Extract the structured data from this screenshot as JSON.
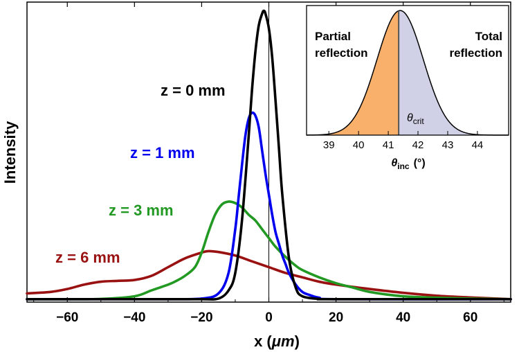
{
  "chart_data": [
    {
      "type": "line",
      "title": "",
      "xlabel": "x (μm)",
      "xlabel_parts": {
        "prefix": "x (",
        "unit": "μm",
        "suffix": ")"
      },
      "ylabel": "Intensity",
      "xlim": [
        -72,
        72
      ],
      "ylim": [
        0,
        1.03
      ],
      "xticks": [
        -60,
        -40,
        -20,
        0,
        20,
        40,
        60
      ],
      "xtick_labels": [
        "−60",
        "−40",
        "−20",
        "0",
        "20",
        "40",
        "60"
      ],
      "yticks_shown": false,
      "vertical_reference_line_x": 0,
      "series": [
        {
          "name": "z = 0 mm",
          "color": "#000000",
          "x": [
            -72,
            -40,
            -30,
            -20,
            -15,
            -12,
            -10,
            -8,
            -6,
            -5,
            -4,
            -3,
            -2,
            -1.5,
            -1,
            0,
            1,
            2,
            3,
            4,
            6,
            8,
            10,
            15,
            20,
            72
          ],
          "y": [
            0.01,
            0.01,
            0.01,
            0.01,
            0.012,
            0.04,
            0.1,
            0.28,
            0.57,
            0.73,
            0.86,
            0.95,
            0.99,
            1.0,
            0.99,
            0.94,
            0.84,
            0.69,
            0.53,
            0.37,
            0.15,
            0.05,
            0.02,
            0.011,
            0.01,
            0.01
          ]
        },
        {
          "name": "z = 1 mm",
          "color": "#0000ee",
          "x": [
            -72,
            -40,
            -30,
            -20,
            -15,
            -12,
            -10,
            -9,
            -8,
            -7,
            -6,
            -5,
            -4,
            -3,
            -2,
            -1,
            0,
            1,
            2,
            3,
            4,
            5,
            6,
            8,
            10,
            12,
            15,
            20,
            72
          ],
          "y": [
            0.01,
            0.01,
            0.01,
            0.012,
            0.03,
            0.1,
            0.25,
            0.36,
            0.47,
            0.57,
            0.63,
            0.65,
            0.64,
            0.6,
            0.52,
            0.44,
            0.37,
            0.3,
            0.24,
            0.2,
            0.16,
            0.13,
            0.1,
            0.06,
            0.035,
            0.025,
            0.015,
            0.01,
            0.01
          ]
        },
        {
          "name": "z = 3 mm",
          "color": "#229922",
          "x": [
            -72,
            -60,
            -50,
            -40,
            -35,
            -30,
            -28,
            -25,
            -22,
            -20,
            -18,
            -16,
            -14,
            -12,
            -10,
            -8,
            -6,
            -4,
            -2,
            0,
            2,
            5,
            8,
            10,
            15,
            20,
            25,
            30,
            40,
            50,
            60,
            72
          ],
          "y": [
            0.01,
            0.01,
            0.011,
            0.02,
            0.04,
            0.06,
            0.07,
            0.09,
            0.12,
            0.17,
            0.24,
            0.3,
            0.335,
            0.345,
            0.34,
            0.325,
            0.3,
            0.28,
            0.25,
            0.22,
            0.19,
            0.155,
            0.125,
            0.11,
            0.085,
            0.065,
            0.05,
            0.035,
            0.02,
            0.015,
            0.012,
            0.01
          ]
        },
        {
          "name": "z = 6 mm",
          "color": "#991111",
          "x": [
            -72,
            -65,
            -60,
            -55,
            -50,
            -45,
            -40,
            -35,
            -30,
            -25,
            -20,
            -18,
            -15,
            -10,
            -5,
            0,
            5,
            10,
            15,
            20,
            30,
            40,
            50,
            60,
            72
          ],
          "y": [
            0.03,
            0.035,
            0.045,
            0.06,
            0.07,
            0.073,
            0.076,
            0.09,
            0.12,
            0.15,
            0.17,
            0.175,
            0.172,
            0.16,
            0.14,
            0.12,
            0.1,
            0.085,
            0.07,
            0.06,
            0.045,
            0.032,
            0.022,
            0.016,
            0.01
          ]
        }
      ],
      "labels": {
        "z0": "z = 0 mm",
        "z1": "z = 1 mm",
        "z3": "z = 3 mm",
        "z6": "z = 6 mm"
      }
    },
    {
      "type": "area",
      "title": "inset",
      "xlabel": "θinc (°)",
      "xlabel_parts": {
        "symbol": "θ",
        "sub": "inc",
        "unit": "(°)"
      },
      "xlim": [
        38.25,
        45.05
      ],
      "ylim": [
        0,
        1.04
      ],
      "xticks": [
        39,
        40,
        41,
        42,
        43,
        44
      ],
      "xtick_labels": [
        "39",
        "40",
        "41",
        "42",
        "43",
        "44"
      ],
      "gaussian": {
        "center": 41.4,
        "sigma": 0.78,
        "peak": 1.0
      },
      "critical_angle": 41.35,
      "critical_label_parts": {
        "symbol": "θ",
        "sub": "crit"
      },
      "regions": [
        {
          "name": "Partial reflection",
          "line1": "Partial",
          "line2": "reflection",
          "color": "#f9b06b"
        },
        {
          "name": "Total reflection",
          "line1": "Total",
          "line2": "reflection",
          "color": "#d0d0e6"
        }
      ]
    }
  ]
}
